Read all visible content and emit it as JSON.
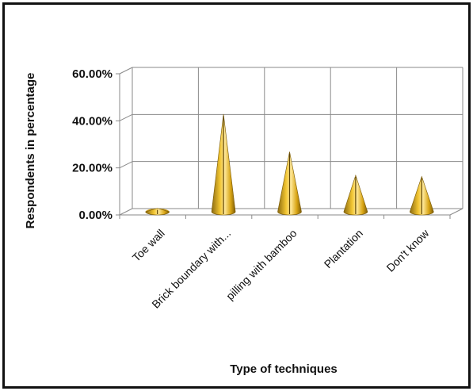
{
  "chart_data": {
    "type": "bar",
    "categories": [
      "Toe wall",
      "Brick boundary with...",
      "pilling with bamboo",
      "Plantation",
      "Don't know"
    ],
    "series": [
      {
        "values": [
          1.5,
          41.5,
          25.5,
          15.5,
          15.0
        ]
      }
    ],
    "y_ticks": [
      "0.00%",
      "20.00%",
      "40.00%",
      "60.00%"
    ],
    "xlabel": "Type of techniques",
    "ylabel": "Respondents in percentage",
    "ylim": [
      0,
      60
    ],
    "y_unit": "%",
    "grid": true,
    "legend": "none",
    "mark_style": "cone",
    "colors": {
      "fill": "#E8B828",
      "highlight": "#FFE99A",
      "shadow": "#8A6A10",
      "grid": "#8a8a8a",
      "frame": "#111111"
    }
  }
}
